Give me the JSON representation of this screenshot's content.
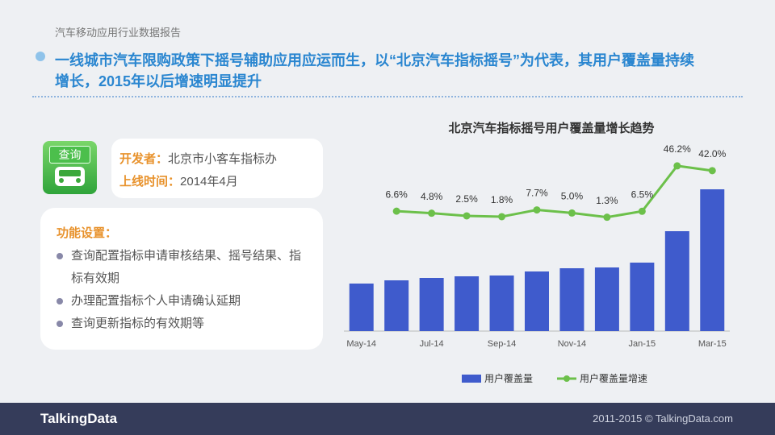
{
  "header": {
    "report": "汽车移动应用行业数据报告",
    "headline_lines": [
      "一线城市汽车限购政策下摇号辅助应用应运而生，以“北京汽车指标摇号”为代表，其用户覆盖量持续",
      "增长，2015年以后增速明显提升"
    ]
  },
  "app": {
    "icon_label": "查询",
    "developer_label": "开发者：",
    "developer": "北京市小客车指标办",
    "launch_label": "上线时间：",
    "launch": "2014年4月"
  },
  "features": {
    "title": "功能设置：",
    "items": [
      "查询配置指标申请审核结果、摇号结果、指标有效期",
      "办理配置指标个人申请确认延期",
      "查询更新指标的有效期等"
    ]
  },
  "chart_data": {
    "type": "bar",
    "title": "北京汽车指标摇号用户覆盖量增长趋势",
    "categories": [
      "May-14",
      null,
      "Jul-14",
      null,
      "Sep-14",
      null,
      "Nov-14",
      null,
      "Jan-15",
      null,
      "Mar-15"
    ],
    "series": [
      {
        "name": "用户覆盖量",
        "type": "bar",
        "color": "#3f5bcc",
        "values": [
          59,
          63,
          66,
          68,
          69,
          74,
          78,
          79,
          85,
          124,
          176
        ]
      },
      {
        "name": "用户覆盖量增速",
        "type": "line",
        "color": "#6cc04a",
        "values": [
          null,
          6.6,
          4.8,
          2.5,
          1.8,
          7.7,
          5.0,
          1.3,
          6.5,
          46.2,
          42.0
        ],
        "value_labels": [
          null,
          "6.6%",
          "4.8%",
          "2.5%",
          "1.8%",
          "7.7%",
          "5.0%",
          "1.3%",
          "6.5%",
          "46.2%",
          "42.0%"
        ]
      }
    ]
  },
  "footer": {
    "logo": "TalkingData",
    "copyright": "2011-2015 © TalkingData.com"
  }
}
